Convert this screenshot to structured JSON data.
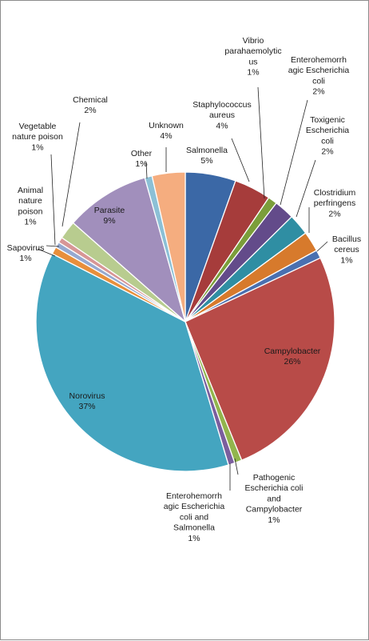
{
  "chart_data": {
    "type": "pie",
    "title": "",
    "start_angle_deg": 0,
    "direction": "clockwise",
    "slices": [
      {
        "label": "Salmonella",
        "pct": 5.5,
        "pct_label": "5%",
        "color": "#3b68a6"
      },
      {
        "label": "Staphylococcus aureus",
        "pct": 4.0,
        "pct_label": "4%",
        "color": "#a63c3b"
      },
      {
        "label": "Vibrio parahaemolytic us",
        "pct": 1.0,
        "pct_label": "1%",
        "color": "#7b9e3a"
      },
      {
        "label": "Enterohemorrh agic Escherichia coli",
        "pct": 2.2,
        "pct_label": "2%",
        "color": "#634b8a"
      },
      {
        "label": "Toxigenic Escherichia coli",
        "pct": 2.3,
        "pct_label": "2%",
        "color": "#2f8ea3"
      },
      {
        "label": "Clostridium perfringens",
        "pct": 2.2,
        "pct_label": "2%",
        "color": "#d77a2c"
      },
      {
        "label": "Bacillus cereus",
        "pct": 0.9,
        "pct_label": "1%",
        "color": "#4a70b0"
      },
      {
        "label": "Campylobacter",
        "pct": 26.0,
        "pct_label": "26%",
        "color": "#b84b48"
      },
      {
        "label": "Pathogenic Escherichia coli and Campylobacter",
        "pct": 0.8,
        "pct_label": "1%",
        "color": "#92b54d"
      },
      {
        "label": "Enterohemorrh agic Escherichia coli and Salmonella",
        "pct": 0.7,
        "pct_label": "1%",
        "color": "#7b5e9e"
      },
      {
        "label": "Norovirus",
        "pct": 37.4,
        "pct_label": "37%",
        "color": "#44a5c0"
      },
      {
        "label": "Sapovirus",
        "pct": 0.8,
        "pct_label": "1%",
        "color": "#e88f3b"
      },
      {
        "label": "Animal nature poison",
        "pct": 0.6,
        "pct_label": "1%",
        "color": "#96a9d0"
      },
      {
        "label": "Vegetable nature poison",
        "pct": 0.6,
        "pct_label": "1%",
        "color": "#d79696"
      },
      {
        "label": "Chemical",
        "pct": 2.0,
        "pct_label": "2%",
        "color": "#b8cc8f"
      },
      {
        "label": "Parasite",
        "pct": 9.2,
        "pct_label": "9%",
        "color": "#a18fbc"
      },
      {
        "label": "Other",
        "pct": 0.8,
        "pct_label": "1%",
        "color": "#8cc0d6"
      },
      {
        "label": "Unknown",
        "pct": 3.6,
        "pct_label": "4%",
        "color": "#f5ad7f"
      }
    ]
  }
}
